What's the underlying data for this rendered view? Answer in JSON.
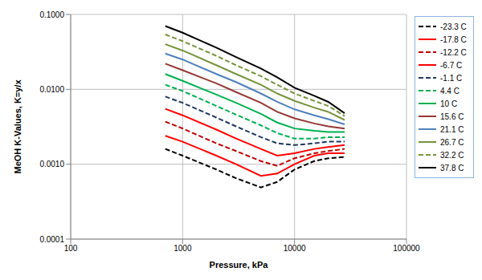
{
  "chart_data": {
    "type": "line",
    "x_label": "Pressure, kPa",
    "y_label": "MeOH K-Values, K=y/x",
    "log": true,
    "grid": true,
    "legend": "right",
    "xlim": [
      100,
      100000
    ],
    "xticks": [
      100,
      1000,
      10000,
      100000
    ],
    "ylim": [
      0.0001,
      0.1
    ],
    "yticks": [
      0.0001,
      {
        "value": 0.001,
        "label": "0.0010"
      },
      {
        "value": 0.01,
        "label": "0.0100"
      },
      {
        "value": 0.1,
        "label": "0.1000"
      }
    ],
    "x": [
      700,
      1000,
      2000,
      3000,
      5000,
      7000,
      10000,
      15000,
      20000,
      28000
    ],
    "series": [
      {
        "name": "-23.3 C",
        "color": "#000000",
        "line_style": "dashed",
        "values": [
          0.0016,
          0.0013,
          0.00085,
          0.00065,
          0.00049,
          0.00058,
          0.00085,
          0.0011,
          0.0012,
          0.00125
        ]
      },
      {
        "name": "-17.8 C",
        "color": "#ff0000",
        "line_style": "solid",
        "values": [
          0.0024,
          0.002,
          0.0013,
          0.001,
          0.0007,
          0.00075,
          0.001,
          0.0013,
          0.0014,
          0.0014
        ]
      },
      {
        "name": "-12.2 C",
        "color": "#c00000",
        "line_style": "dashed",
        "values": [
          0.0037,
          0.003,
          0.0019,
          0.0015,
          0.0011,
          0.00095,
          0.0012,
          0.0014,
          0.0015,
          0.0016
        ]
      },
      {
        "name": "-6.7 C",
        "color": "#ff0000",
        "line_style": "solid",
        "values": [
          0.0055,
          0.0045,
          0.0029,
          0.0022,
          0.0016,
          0.0013,
          0.0014,
          0.0016,
          0.0017,
          0.0018
        ]
      },
      {
        "name": "-1.1 C",
        "color": "#1f3864",
        "line_style": "dashed",
        "values": [
          0.008,
          0.0066,
          0.0042,
          0.0032,
          0.0023,
          0.0019,
          0.0018,
          0.0019,
          0.002,
          0.002
        ]
      },
      {
        "name": "4.4 C",
        "color": "#00b050",
        "line_style": "dashed",
        "values": [
          0.0115,
          0.0095,
          0.006,
          0.0046,
          0.0033,
          0.0026,
          0.0022,
          0.0022,
          0.0023,
          0.0023
        ]
      },
      {
        "name": "10 C",
        "color": "#00b050",
        "line_style": "solid",
        "values": [
          0.016,
          0.013,
          0.0085,
          0.0066,
          0.0047,
          0.0036,
          0.003,
          0.0028,
          0.0027,
          0.0027
        ]
      },
      {
        "name": "15.6 C",
        "color": "#953735",
        "line_style": "solid",
        "values": [
          0.022,
          0.018,
          0.012,
          0.0092,
          0.0066,
          0.005,
          0.0041,
          0.0035,
          0.0032,
          0.003
        ]
      },
      {
        "name": "21.1 C",
        "color": "#4f81bd",
        "line_style": "solid",
        "values": [
          0.03,
          0.025,
          0.016,
          0.0125,
          0.0088,
          0.0068,
          0.0054,
          0.0045,
          0.004,
          0.0034
        ]
      },
      {
        "name": "26.7 C",
        "color": "#77933c",
        "line_style": "solid",
        "values": [
          0.04,
          0.033,
          0.021,
          0.016,
          0.0115,
          0.0088,
          0.007,
          0.0057,
          0.005,
          0.0039
        ]
      },
      {
        "name": "32.2 C",
        "color": "#77933c",
        "line_style": "dashed",
        "values": [
          0.054,
          0.044,
          0.028,
          0.021,
          0.015,
          0.0115,
          0.0088,
          0.007,
          0.006,
          0.0044
        ]
      },
      {
        "name": "37.8 C",
        "color": "#000000",
        "line_style": "solid",
        "values": [
          0.07,
          0.057,
          0.036,
          0.027,
          0.019,
          0.0145,
          0.0105,
          0.0082,
          0.0068,
          0.0048
        ]
      }
    ]
  }
}
